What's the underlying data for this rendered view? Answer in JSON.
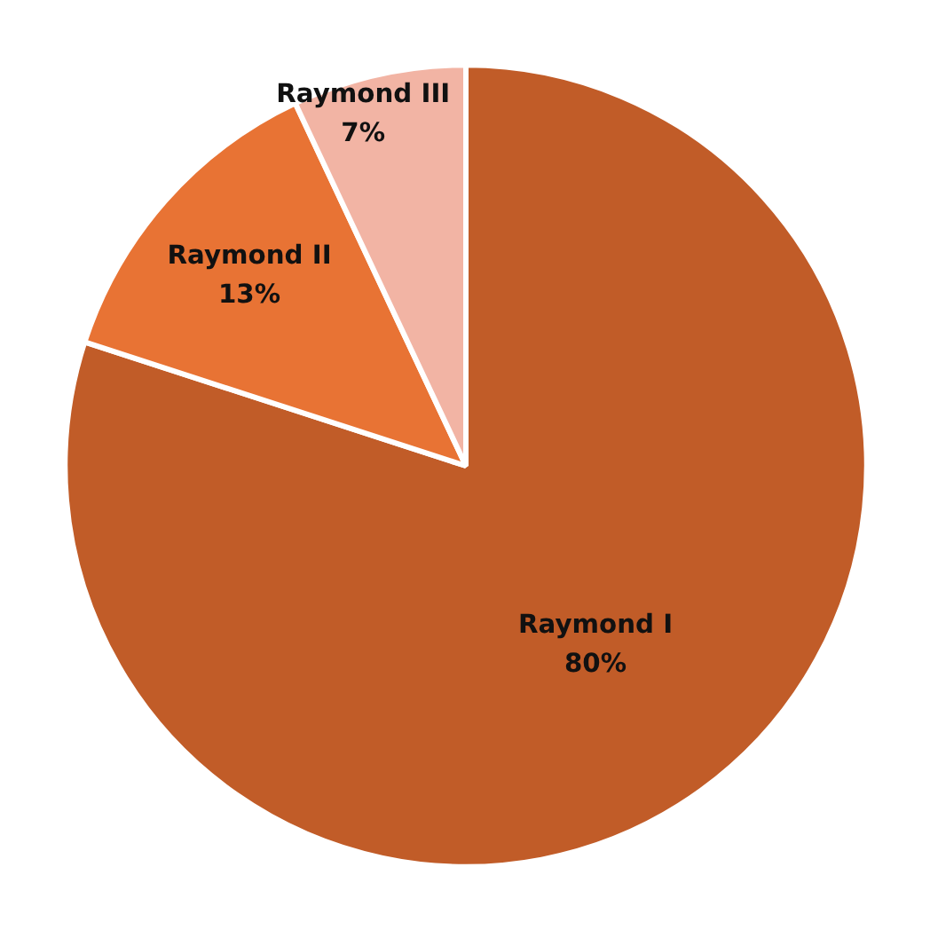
{
  "chart_data": {
    "type": "pie",
    "categories": [
      "Raymond I",
      "Raymond II",
      "Raymond III"
    ],
    "values": [
      80,
      13,
      7
    ],
    "colors": [
      "#c15c28",
      "#e87334",
      "#f2b4a4"
    ],
    "value_labels": [
      "80%",
      "13%",
      "7%"
    ],
    "legend": false
  }
}
